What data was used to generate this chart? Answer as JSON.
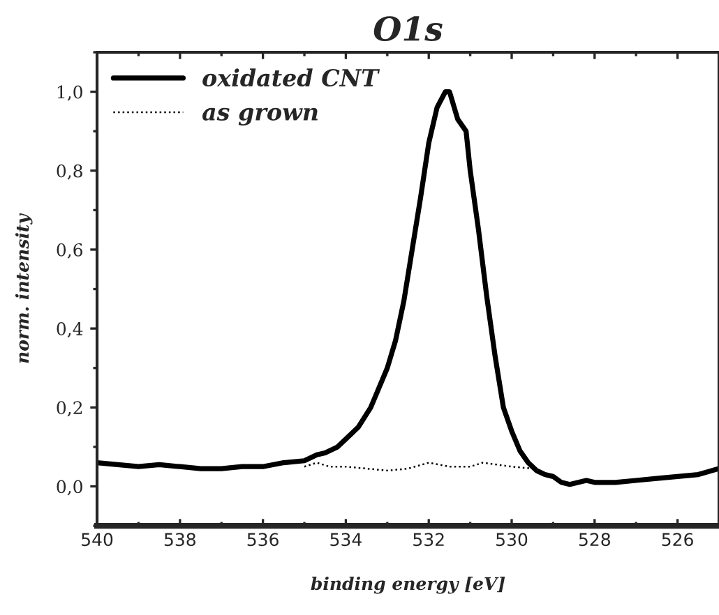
{
  "chart_data": {
    "type": "line",
    "title": "O1s",
    "xlabel": "binding energy [eV]",
    "ylabel": "norm. intensity",
    "xlim": [
      540,
      525
    ],
    "xticks": [
      540,
      538,
      536,
      534,
      532,
      530,
      528,
      526
    ],
    "ylim": [
      -0.1,
      1.1
    ],
    "yticks": [
      {
        "value": 0,
        "label": "0,0"
      },
      {
        "value": 0.2,
        "label": "0,2"
      },
      {
        "value": 0.4,
        "label": "0,4"
      },
      {
        "value": 0.6,
        "label": "0,6"
      },
      {
        "value": 0.8,
        "label": "0,8"
      },
      {
        "value": 1.0,
        "label": "1,0"
      }
    ],
    "legend": "top left",
    "grid": false,
    "series": [
      {
        "name": "oxidated CNT",
        "color": "#000000",
        "line_style": "solid",
        "x": [
          540,
          539.5,
          539,
          538.5,
          538,
          537.5,
          537,
          536.5,
          536,
          535.5,
          535,
          534.7,
          534.5,
          534.2,
          534,
          533.7,
          533.4,
          533.2,
          533,
          532.8,
          532.6,
          532.4,
          532.2,
          532,
          531.8,
          531.6,
          531.5,
          531.3,
          531.1,
          531,
          530.8,
          530.6,
          530.4,
          530.2,
          530,
          529.8,
          529.6,
          529.4,
          529.2,
          529,
          528.8,
          528.6,
          528.2,
          528,
          527.5,
          527,
          526.5,
          526,
          525.5,
          525
        ],
        "values": [
          0.06,
          0.055,
          0.05,
          0.055,
          0.05,
          0.045,
          0.045,
          0.05,
          0.05,
          0.06,
          0.065,
          0.08,
          0.085,
          0.1,
          0.12,
          0.15,
          0.2,
          0.25,
          0.3,
          0.37,
          0.47,
          0.6,
          0.73,
          0.87,
          0.96,
          1.0,
          1.0,
          0.93,
          0.9,
          0.8,
          0.65,
          0.48,
          0.33,
          0.2,
          0.14,
          0.09,
          0.06,
          0.04,
          0.03,
          0.025,
          0.01,
          0.005,
          0.015,
          0.01,
          0.01,
          0.015,
          0.02,
          0.025,
          0.03,
          0.045
        ]
      },
      {
        "name": "as grown",
        "color": "#000000",
        "line_style": "dotted",
        "x": [
          535,
          534.7,
          534.4,
          534,
          533,
          532.5,
          532,
          531.5,
          531,
          530.7,
          530,
          529.5
        ],
        "values": [
          0.05,
          0.06,
          0.05,
          0.05,
          0.04,
          0.045,
          0.06,
          0.05,
          0.05,
          0.06,
          0.05,
          0.045
        ]
      }
    ]
  }
}
